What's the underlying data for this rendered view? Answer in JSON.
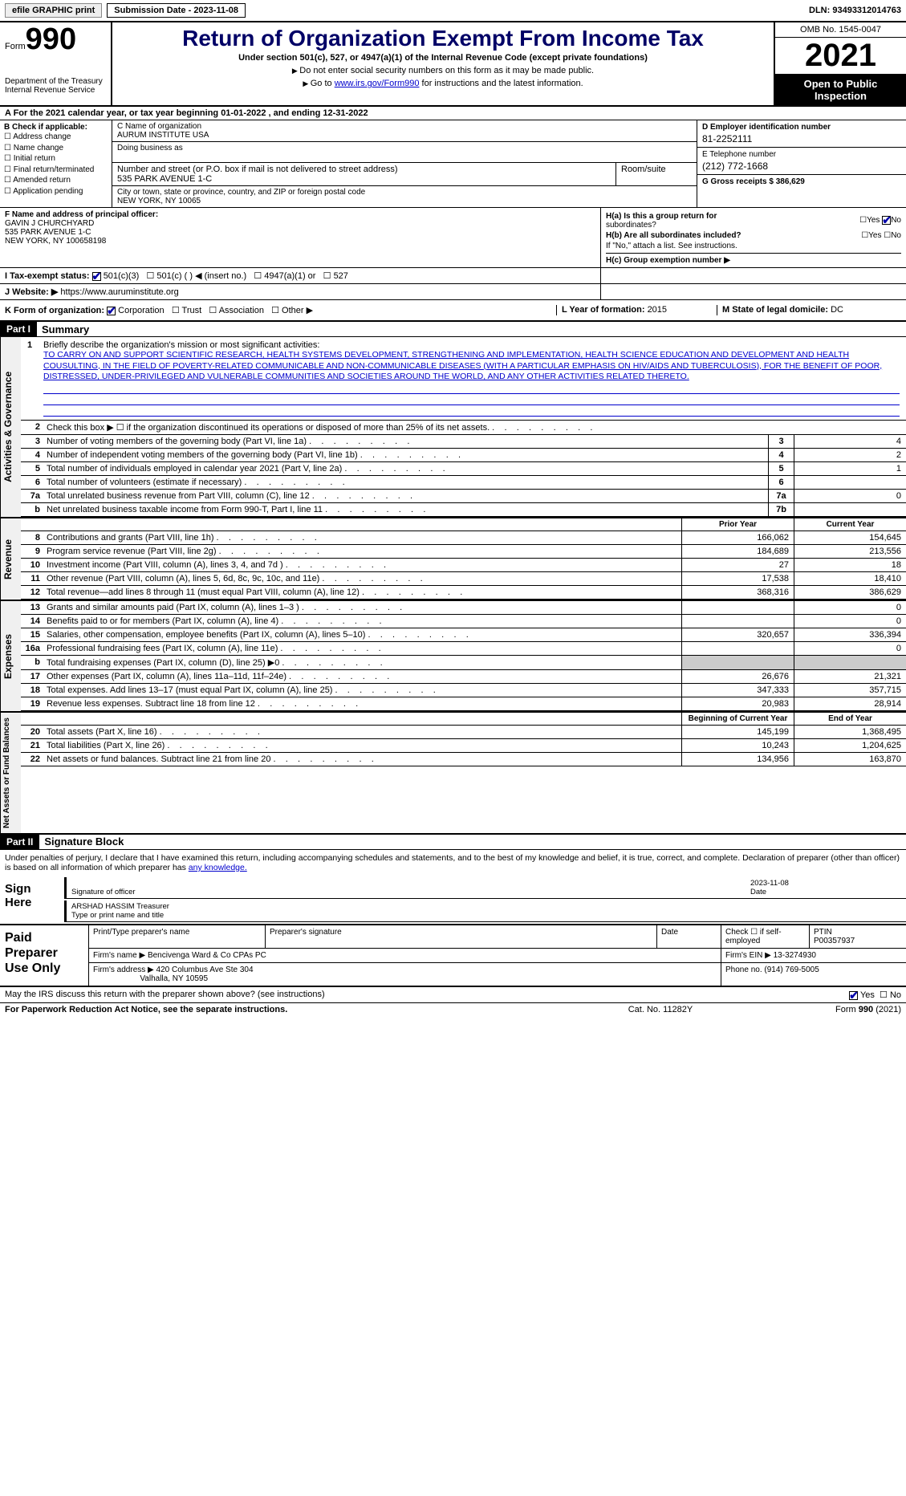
{
  "topbar": {
    "efile": "efile GRAPHIC print",
    "submission": "Submission Date - 2023-11-08",
    "dln": "DLN: 93493312014763"
  },
  "header": {
    "form_label": "Form",
    "form_number": "990",
    "title": "Return of Organization Exempt From Income Tax",
    "subtitle": "Under section 501(c), 527, or 4947(a)(1) of the Internal Revenue Code (except private foundations)",
    "instr1": "Do not enter social security numbers on this form as it may be made public.",
    "instr2_pre": "Go to ",
    "instr2_link": "www.irs.gov/Form990",
    "instr2_post": " for instructions and the latest information.",
    "dept": "Department of the Treasury",
    "irs": "Internal Revenue Service",
    "omb": "OMB No. 1545-0047",
    "year": "2021",
    "inspection": "Open to Public Inspection"
  },
  "lineA": "A For the 2021 calendar year, or tax year beginning 01-01-2022    , and ending 12-31-2022",
  "boxB": {
    "title": "B Check if applicable:",
    "items": [
      "Address change",
      "Name change",
      "Initial return",
      "Final return/terminated",
      "Amended return",
      "Application pending"
    ]
  },
  "boxC": {
    "name_label": "C Name of organization",
    "name": "AURUM INSTITUTE USA",
    "dba_label": "Doing business as",
    "street_label": "Number and street (or P.O. box if mail is not delivered to street address)",
    "street": "535 PARK AVENUE 1-C",
    "suite_label": "Room/suite",
    "city_label": "City or town, state or province, country, and ZIP or foreign postal code",
    "city": "NEW YORK, NY  10065"
  },
  "boxD": {
    "ein_label": "D Employer identification number",
    "ein": "81-2252111",
    "phone_label": "E Telephone number",
    "phone": "(212) 772-1668",
    "gross_label": "G Gross receipts $",
    "gross": "386,629"
  },
  "boxF": {
    "label": "F  Name and address of principal officer:",
    "name": "GAVIN J CHURCHYARD",
    "addr1": "535 PARK AVENUE 1-C",
    "addr2": "NEW YORK, NY  100658198"
  },
  "boxH": {
    "ha_label": "H(a)  Is this a group return for",
    "ha_sub": "subordinates?",
    "hb_label": "H(b)  Are all subordinates included?",
    "hb_note": "If \"No,\" attach a list. See instructions.",
    "hc_label": "H(c)  Group exemption number ▶"
  },
  "rowI": {
    "label": "I   Tax-exempt status:",
    "opts": [
      "501(c)(3)",
      "501(c) (  ) ◀ (insert no.)",
      "4947(a)(1) or",
      "527"
    ]
  },
  "rowJ": {
    "label": "J   Website: ▶",
    "url": "https://www.auruminstitute.org"
  },
  "rowK": {
    "label": "K Form of organization:",
    "opts": [
      "Corporation",
      "Trust",
      "Association",
      "Other ▶"
    ],
    "l_label": "L Year of formation: ",
    "l_val": "2015",
    "m_label": "M State of legal domicile: ",
    "m_val": "DC"
  },
  "part1": {
    "header": "Part I",
    "title": "Summary"
  },
  "mission": {
    "num": "1",
    "label": "Briefly describe the organization's mission or most significant activities:",
    "text": "TO CARRY ON AND SUPPORT SCIENTIFIC RESEARCH, HEALTH SYSTEMS DEVELOPMENT, STRENGTHENING AND IMPLEMENTATION, HEALTH SCIENCE EDUCATION AND DEVELOPMENT AND HEALTH COUSULTING, IN THE FIELD OF POVERTY-RELATED COMMUNICABLE AND NON-COMMUNICABLE DISEASES (WITH A PARTICULAR EMPHASIS ON HIV/AIDS AND TUBERCULOSIS), FOR THE BENEFIT OF POOR, DISTRESSED, UNDER-PRIVILEGED AND VULNERABLE COMMUNITIES AND SOCIETIES AROUND THE WORLD, AND ANY OTHER ACTIVITIES RELATED THERETO."
  },
  "governance": {
    "tab": "Activities & Governance",
    "rows": [
      {
        "n": "2",
        "label": "Check this box ▶ ☐  if the organization discontinued its operations or disposed of more than 25% of its net assets.",
        "box": "",
        "val": ""
      },
      {
        "n": "3",
        "label": "Number of voting members of the governing body (Part VI, line 1a)",
        "box": "3",
        "val": "4"
      },
      {
        "n": "4",
        "label": "Number of independent voting members of the governing body (Part VI, line 1b)",
        "box": "4",
        "val": "2"
      },
      {
        "n": "5",
        "label": "Total number of individuals employed in calendar year 2021 (Part V, line 2a)",
        "box": "5",
        "val": "1"
      },
      {
        "n": "6",
        "label": "Total number of volunteers (estimate if necessary)",
        "box": "6",
        "val": ""
      },
      {
        "n": "7a",
        "label": "Total unrelated business revenue from Part VIII, column (C), line 12",
        "box": "7a",
        "val": "0"
      },
      {
        "n": "b",
        "label": "Net unrelated business taxable income from Form 990-T, Part I, line 11",
        "box": "7b",
        "val": ""
      }
    ]
  },
  "revenue": {
    "tab": "Revenue",
    "hdr_prior": "Prior Year",
    "hdr_current": "Current Year",
    "rows": [
      {
        "n": "8",
        "label": "Contributions and grants (Part VIII, line 1h)",
        "prior": "166,062",
        "curr": "154,645"
      },
      {
        "n": "9",
        "label": "Program service revenue (Part VIII, line 2g)",
        "prior": "184,689",
        "curr": "213,556"
      },
      {
        "n": "10",
        "label": "Investment income (Part VIII, column (A), lines 3, 4, and 7d )",
        "prior": "27",
        "curr": "18"
      },
      {
        "n": "11",
        "label": "Other revenue (Part VIII, column (A), lines 5, 6d, 8c, 9c, 10c, and 11e)",
        "prior": "17,538",
        "curr": "18,410"
      },
      {
        "n": "12",
        "label": "Total revenue—add lines 8 through 11 (must equal Part VIII, column (A), line 12)",
        "prior": "368,316",
        "curr": "386,629"
      }
    ]
  },
  "expenses": {
    "tab": "Expenses",
    "rows": [
      {
        "n": "13",
        "label": "Grants and similar amounts paid (Part IX, column (A), lines 1–3 )",
        "prior": "",
        "curr": "0"
      },
      {
        "n": "14",
        "label": "Benefits paid to or for members (Part IX, column (A), line 4)",
        "prior": "",
        "curr": "0"
      },
      {
        "n": "15",
        "label": "Salaries, other compensation, employee benefits (Part IX, column (A), lines 5–10)",
        "prior": "320,657",
        "curr": "336,394"
      },
      {
        "n": "16a",
        "label": "Professional fundraising fees (Part IX, column (A), line 11e)",
        "prior": "",
        "curr": "0"
      },
      {
        "n": "b",
        "label": "Total fundraising expenses (Part IX, column (D), line 25) ▶0",
        "prior": "grey",
        "curr": "grey"
      },
      {
        "n": "17",
        "label": "Other expenses (Part IX, column (A), lines 11a–11d, 11f–24e)",
        "prior": "26,676",
        "curr": "21,321"
      },
      {
        "n": "18",
        "label": "Total expenses. Add lines 13–17 (must equal Part IX, column (A), line 25)",
        "prior": "347,333",
        "curr": "357,715"
      },
      {
        "n": "19",
        "label": "Revenue less expenses. Subtract line 18 from line 12",
        "prior": "20,983",
        "curr": "28,914"
      }
    ]
  },
  "netassets": {
    "tab": "Net Assets or Fund Balances",
    "hdr_begin": "Beginning of Current Year",
    "hdr_end": "End of Year",
    "rows": [
      {
        "n": "20",
        "label": "Total assets (Part X, line 16)",
        "prior": "145,199",
        "curr": "1,368,495"
      },
      {
        "n": "21",
        "label": "Total liabilities (Part X, line 26)",
        "prior": "10,243",
        "curr": "1,204,625"
      },
      {
        "n": "22",
        "label": "Net assets or fund balances. Subtract line 21 from line 20",
        "prior": "134,956",
        "curr": "163,870"
      }
    ]
  },
  "part2": {
    "header": "Part II",
    "title": "Signature Block",
    "text_pre": "Under penalties of perjury, I declare that I have examined this return, including accompanying schedules and statements, and to the best of my knowledge and belief, it is true, correct, and complete. Declaration of preparer (other than officer) is based on all information of which preparer has ",
    "text_link": "any knowledge."
  },
  "sign": {
    "label": "Sign Here",
    "sig_label": "Signature of officer",
    "date": "2023-11-08",
    "date_label": "Date",
    "name": "ARSHAD HASSIM Treasurer",
    "name_label": "Type or print name and title"
  },
  "preparer": {
    "label": "Paid Preparer Use Only",
    "h1": "Print/Type preparer's name",
    "h2": "Preparer's signature",
    "h3": "Date",
    "h4_pre": "Check ☐ if self-employed",
    "h5": "PTIN",
    "ptin": "P00357937",
    "firm_label": "Firm's name     ▶",
    "firm": "Bencivenga Ward & Co CPAs PC",
    "ein_label": "Firm's EIN ▶",
    "ein": "13-3274930",
    "addr_label": "Firm's address ▶",
    "addr1": "420 Columbus Ave Ste 304",
    "addr2": "Valhalla, NY  10595",
    "phone_label": "Phone no.",
    "phone": "(914) 769-5005"
  },
  "footer": {
    "discuss": "May the IRS discuss this return with the preparer shown above? (see instructions)",
    "yes": "Yes",
    "no": "No",
    "paperwork": "For Paperwork Reduction Act Notice, see the separate instructions.",
    "cat": "Cat. No. 11282Y",
    "form": "Form 990 (2021)"
  }
}
